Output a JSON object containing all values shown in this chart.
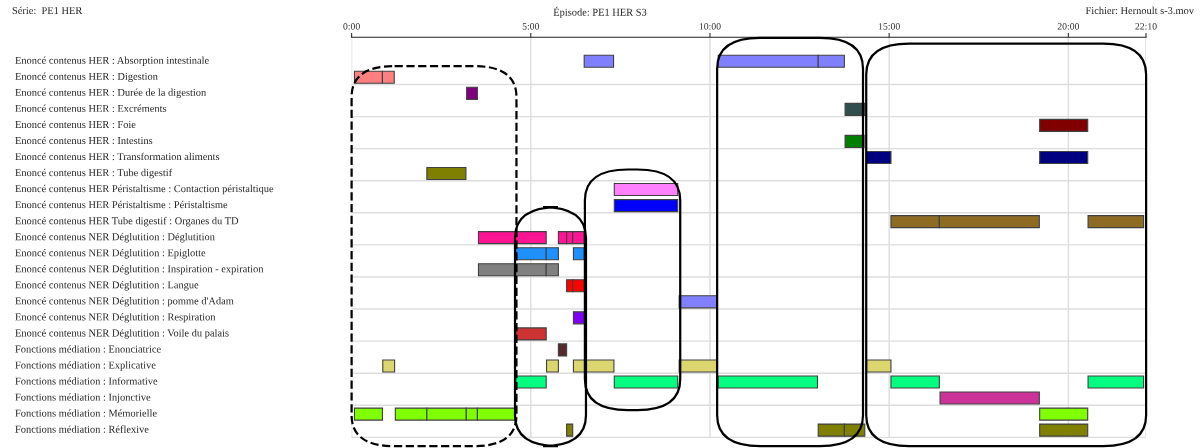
{
  "chart_data": {
    "type": "bar",
    "orientation": "horizontal",
    "title": "Épisode: PE1 HER S3",
    "annotations": [
      "Série:  PE1 HER",
      "Fichier: Hernoult s-3.mov"
    ],
    "categories": [
      "Enoncé contenus HER : Absorption intestinale",
      "Enoncé contenus HER : Digestion",
      "Enoncé contenus HER : Durée de la digestion",
      "Enoncé contenus HER : Excréments",
      "Enoncé contenus HER : Foie",
      "Enoncé contenus HER : Intestins",
      "Enoncé contenus HER : Transformation aliments",
      "Enoncé contenus HER : Tube digestif",
      "Enoncé contenus HER Péristaltisme : Contaction péristaltique",
      "Enoncé contenus HER Péristaltisme : Péristaltisme",
      "Enoncé contenus HER Tube digestif : Organes du TD",
      "Enoncé contenus NER Déglutition : Déglutition",
      "Enoncé contenus NER Déglutition : Epiglotte",
      "Enoncé contenus NER Déglutition : Inspiration - expiration",
      "Enoncé contenus NER Déglutition : Langue",
      "Enoncé contenus NER Déglutition : pomme d'Adam",
      "Enoncé contenus NER Déglutition : Respiration",
      "Enoncé contenus NER Déglutition : Voile du palais",
      "Fonctions médiation : Enonciatrice",
      "Fonctions médiation : Explicative",
      "Fonctions médiation : Informative",
      "Fonctions médiation : Injonctive",
      "Fonctions médiation : Mémorielle",
      "Fonctions médiation : Réflexive"
    ],
    "xlim": [
      0,
      22.1667
    ],
    "xticks": [
      {
        "value": 0,
        "label": "0:00"
      },
      {
        "value": 5,
        "label": "5:00"
      },
      {
        "value": 10,
        "label": "10:00"
      },
      {
        "value": 15,
        "label": "15:00"
      },
      {
        "value": 20,
        "label": "20:00"
      },
      {
        "value": 22.1667,
        "label": "22:10"
      }
    ],
    "grid": true,
    "legend": false,
    "series": [
      {
        "colors": [
          "#8080ff",
          "#ff8080",
          "#800080",
          "#2f4f4f",
          "#800000",
          "#008000",
          "#000080",
          "#808000",
          "#ff80ff",
          "#0000ff",
          "#8e6b23",
          "#ff1493",
          "#1e90ff",
          "#808080",
          "#ff0000",
          "#8080ff",
          "#8000ff",
          "#cd3333",
          "#552a2a",
          "#dcd66e",
          "#00ff80",
          "#cc3399",
          "#80ff00",
          "#808000"
        ],
        "base": [
          6.49,
          0.08,
          3.21,
          13.77,
          19.2,
          13.77,
          14.37,
          2.1,
          7.33,
          7.33,
          15.05,
          3.54,
          4.58,
          3.54,
          6.0,
          9.14,
          6.19,
          4.58,
          5.77,
          0.87,
          4.58,
          16.42,
          0.08,
          6.0
        ],
        "values": [
          0.82,
          0.78,
          0.3,
          0.55,
          1.34,
          0.53,
          0.68,
          1.09,
          1.77,
          1.77,
          1.35,
          1.89,
          0.85,
          1.89,
          0.17,
          1.05,
          0.3,
          0.85,
          0.23,
          0.33,
          0.85,
          2.77,
          0.78,
          0.17
        ]
      },
      {
        "colors": [
          "#8080ff",
          "#ff8080",
          "#800080",
          "#2f4f4f",
          "#800000",
          "#008000",
          "#000080",
          "#808000",
          "#ff80ff",
          "#0000ff",
          "#8e6b23",
          "#ff1493",
          "#1e90ff",
          "#808080",
          "#ff0000",
          "#8080ff",
          "#8000ff",
          "#cd3333",
          "#552a2a",
          "#dcd66e",
          "#00ff80",
          "#cc3399",
          "#80ff00",
          "#808000"
        ],
        "base": [
          10.23,
          0.86,
          null,
          null,
          null,
          null,
          19.2,
          null,
          null,
          null,
          16.4,
          5.77,
          5.43,
          5.43,
          6.17,
          null,
          null,
          null,
          null,
          5.44,
          7.33,
          null,
          1.22,
          13.02
        ],
        "values": [
          2.79,
          0.33,
          null,
          null,
          null,
          null,
          1.34,
          null,
          null,
          null,
          2.79,
          0.23,
          0.34,
          0.34,
          0.32,
          null,
          null,
          null,
          null,
          0.33,
          1.77,
          null,
          0.88,
          0.73
        ]
      },
      {
        "colors": [
          "#8080ff",
          "#ff8080",
          "#800080",
          "#2f4f4f",
          "#800000",
          "#008000",
          "#000080",
          "#808000",
          "#ff80ff",
          "#0000ff",
          "#8e6b23",
          "#ff1493",
          "#1e90ff",
          "#808080",
          "#ff0000",
          "#8080ff",
          "#8000ff",
          "#cd3333",
          "#552a2a",
          "#dcd66e",
          "#00ff80",
          "#cc3399",
          "#80ff00",
          "#808000"
        ],
        "base": [
          13.02,
          null,
          null,
          null,
          null,
          null,
          null,
          null,
          null,
          null,
          20.55,
          6.0,
          6.19,
          null,
          null,
          null,
          null,
          null,
          null,
          6.19,
          10.23,
          null,
          2.1,
          13.75
        ],
        "values": [
          0.73,
          null,
          null,
          null,
          null,
          null,
          null,
          null,
          null,
          null,
          1.55,
          0.17,
          0.3,
          null,
          null,
          null,
          null,
          null,
          null,
          1.13,
          2.77,
          null,
          1.1,
          0.57
        ]
      },
      {
        "colors": [
          "#8080ff",
          "#ff8080",
          "#800080",
          "#2f4f4f",
          "#800000",
          "#008000",
          "#000080",
          "#808000",
          "#ff80ff",
          "#0000ff",
          "#8e6b23",
          "#ff1493",
          "#1e90ff",
          "#808080",
          "#ff0000",
          "#8080ff",
          "#8000ff",
          "#cd3333",
          "#552a2a",
          "#dcd66e",
          "#00ff80",
          "#cc3399",
          "#80ff00",
          "#808000"
        ],
        "base": [
          null,
          null,
          null,
          null,
          null,
          null,
          null,
          null,
          null,
          null,
          null,
          6.17,
          null,
          null,
          null,
          null,
          null,
          null,
          null,
          9.14,
          15.05,
          null,
          3.2,
          19.2
        ],
        "values": [
          null,
          null,
          null,
          null,
          null,
          null,
          null,
          null,
          null,
          null,
          null,
          0.32,
          null,
          null,
          null,
          null,
          null,
          null,
          null,
          1.05,
          1.35,
          null,
          0.31,
          1.34
        ]
      },
      {
        "colors": [
          "#8080ff",
          "#ff8080",
          "#800080",
          "#2f4f4f",
          "#800000",
          "#008000",
          "#000080",
          "#808000",
          "#ff80ff",
          "#0000ff",
          "#8e6b23",
          "#ff1493",
          "#1e90ff",
          "#808080",
          "#ff0000",
          "#8080ff",
          "#8000ff",
          "#cd3333",
          "#552a2a",
          "#dcd66e",
          "#00ff80",
          "#cc3399",
          "#80ff00",
          "#808000"
        ],
        "base": [
          null,
          null,
          null,
          null,
          null,
          null,
          null,
          null,
          null,
          null,
          null,
          null,
          null,
          null,
          null,
          null,
          null,
          null,
          null,
          14.37,
          20.55,
          null,
          3.51,
          null
        ],
        "values": [
          null,
          null,
          null,
          null,
          null,
          null,
          null,
          null,
          null,
          null,
          null,
          null,
          null,
          null,
          null,
          null,
          null,
          null,
          null,
          0.68,
          1.55,
          null,
          1.05,
          null
        ]
      },
      {
        "colors": [
          "#8080ff",
          "#ff8080",
          "#800080",
          "#2f4f4f",
          "#800000",
          "#008000",
          "#000080",
          "#808000",
          "#ff80ff",
          "#0000ff",
          "#8e6b23",
          "#ff1493",
          "#1e90ff",
          "#808080",
          "#ff0000",
          "#8080ff",
          "#8000ff",
          "#cd3333",
          "#552a2a",
          "#dcd66e",
          "#00ff80",
          "#cc3399",
          "#80ff00",
          "#808000"
        ],
        "base": [
          null,
          null,
          null,
          null,
          null,
          null,
          null,
          null,
          null,
          null,
          null,
          null,
          null,
          null,
          null,
          null,
          null,
          null,
          null,
          null,
          null,
          null,
          19.2,
          null
        ],
        "values": [
          null,
          null,
          null,
          null,
          null,
          null,
          null,
          null,
          null,
          null,
          null,
          null,
          null,
          null,
          null,
          null,
          null,
          null,
          null,
          null,
          null,
          null,
          1.34,
          null
        ]
      }
    ]
  }
}
